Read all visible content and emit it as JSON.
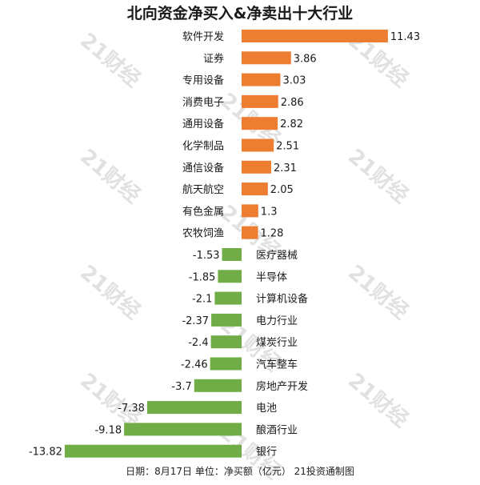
{
  "title": "北向资金净买入&净卖出十大行业",
  "footer": "日期：8月17日 单位：净买额（亿元） 21投资通制图",
  "watermark": "21财经",
  "colors": {
    "positive": "#ED7D31",
    "negative": "#70AD47"
  },
  "chart_data": {
    "type": "bar",
    "orientation": "horizontal",
    "title": "北向资金净买入&净卖出十大行业",
    "categories": [
      "软件开发",
      "证券",
      "专用设备",
      "消费电子",
      "通用设备",
      "化学制品",
      "通信设备",
      "航天航空",
      "有色金属",
      "农牧饲渔",
      "医疗器械",
      "半导体",
      "计算机设备",
      "电力行业",
      "煤炭行业",
      "汽车整车",
      "房地产开发",
      "电池",
      "酿酒行业",
      "银行"
    ],
    "values": [
      11.43,
      3.86,
      3.03,
      2.86,
      2.82,
      2.51,
      2.31,
      2.05,
      1.3,
      1.28,
      -1.53,
      -1.85,
      -2.1,
      -2.37,
      -2.4,
      -2.46,
      -3.7,
      -7.38,
      -9.18,
      -13.82
    ],
    "value_labels": [
      "11.43",
      "3.86",
      "3.03",
      "2.86",
      "2.82",
      "2.51",
      "2.31",
      "2.05",
      "1.3",
      "1.28",
      "-1.53",
      "-1.85",
      "-2.1",
      "-2.37",
      "-2.4",
      "-2.46",
      "-3.7",
      "-7.38",
      "-9.18",
      "-13.82"
    ],
    "grid": false,
    "legend": "none"
  }
}
